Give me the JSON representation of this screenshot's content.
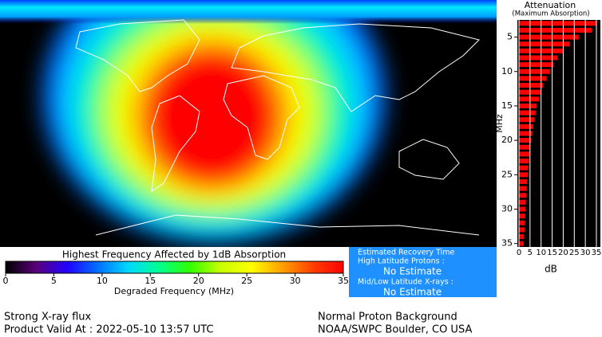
{
  "map": {
    "colorbar": {
      "title": "Highest Frequency Affected by 1dB Absorption",
      "label": "Degraded Frequency (MHz)",
      "lim": [
        0,
        35
      ],
      "ticks": [
        0,
        5,
        10,
        15,
        20,
        25,
        30,
        35
      ],
      "colors": [
        "#000000",
        "#5a007a",
        "#2200ff",
        "#0070ff",
        "#00d8ff",
        "#00ff90",
        "#30ff00",
        "#c8ff00",
        "#ffff00",
        "#ffa000",
        "#ff4000",
        "#ff0000"
      ]
    }
  },
  "recovery": {
    "title": "Estimated Recovery Time",
    "high_latitude_label": "High Latitude Protons :",
    "high_latitude_value": "No Estimate",
    "mid_low_label": "Mid/Low Latitude X-rays :",
    "mid_low_value": "No Estimate"
  },
  "footer": {
    "flux": "Strong X-ray flux",
    "valid": "Product Valid At : 2022-05-10 13:57 UTC",
    "proton": "Normal Proton Background",
    "source": "NOAA/SWPC Boulder, CO USA"
  },
  "chart_data": {
    "type": "bar",
    "title": "Attenuation",
    "subtitle": "(Maximum Absorption)",
    "x_label": "dB",
    "y_label": "MHz",
    "y": [
      3,
      4,
      5,
      6,
      7,
      8,
      9,
      10,
      11,
      12,
      13,
      14,
      15,
      16,
      17,
      18,
      19,
      20,
      21,
      22,
      23,
      24,
      25,
      26,
      27,
      28,
      29,
      30,
      31,
      32,
      33,
      34,
      35
    ],
    "values": [
      35,
      33,
      27,
      23,
      20,
      17.5,
      15.5,
      14,
      12.5,
      11,
      10,
      9,
      8,
      7.5,
      7,
      6.5,
      6,
      5.5,
      5,
      4.8,
      4.5,
      4.2,
      4,
      3.7,
      3.5,
      3.3,
      3.1,
      3,
      2.8,
      2.6,
      2.5,
      2.3,
      2.2
    ],
    "color": "#ff0000",
    "xlim": [
      0,
      35
    ],
    "xticks": [
      0,
      5,
      10,
      15,
      20,
      25,
      30,
      35
    ],
    "ylim": [
      2.5,
      35.5
    ],
    "yticks": [
      5,
      10,
      15,
      20,
      25,
      30,
      35
    ],
    "grid": true
  }
}
